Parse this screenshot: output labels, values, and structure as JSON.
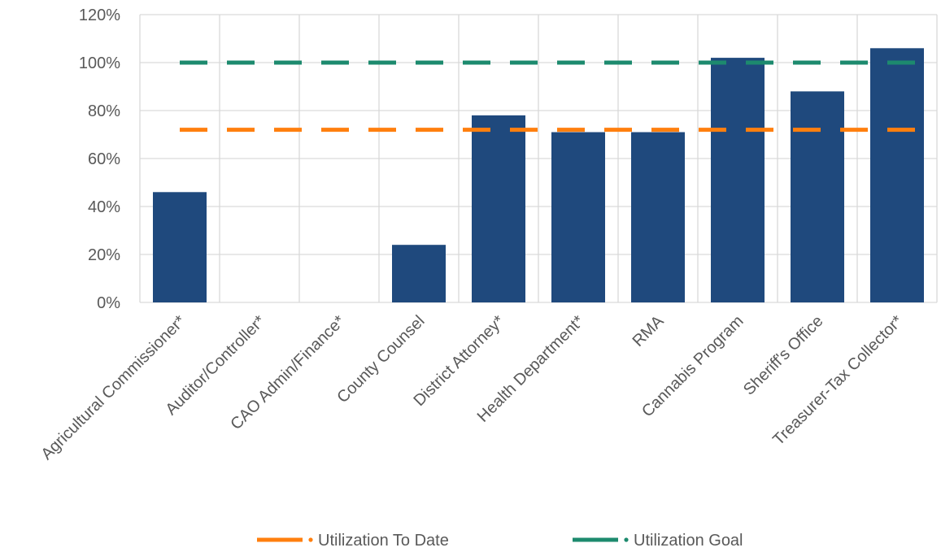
{
  "chart_data": {
    "type": "bar",
    "categories": [
      "Agricultural Commissioner*",
      "Auditor/Controller*",
      "CAO Admin/Finance*",
      "County Counsel",
      "District Attorney*",
      "Health Department*",
      "RMA",
      "Cannabis Program",
      "Sheriff's Office",
      "Treasurer-Tax Collector*"
    ],
    "values": [
      46,
      0,
      0,
      24,
      78,
      71,
      71,
      102,
      88,
      106
    ],
    "ylim": [
      0,
      120
    ],
    "yticks": [
      "0%",
      "20%",
      "40%",
      "60%",
      "80%",
      "100%",
      "120%"
    ],
    "reference_lines": [
      {
        "name": "Utilization To Date",
        "value": 72,
        "color": "#ff7f0e"
      },
      {
        "name": "Utilization Goal",
        "value": 100,
        "color": "#1d8a6e"
      }
    ],
    "bar_color": "#1f497d",
    "grid": true,
    "legend_position": "bottom"
  }
}
